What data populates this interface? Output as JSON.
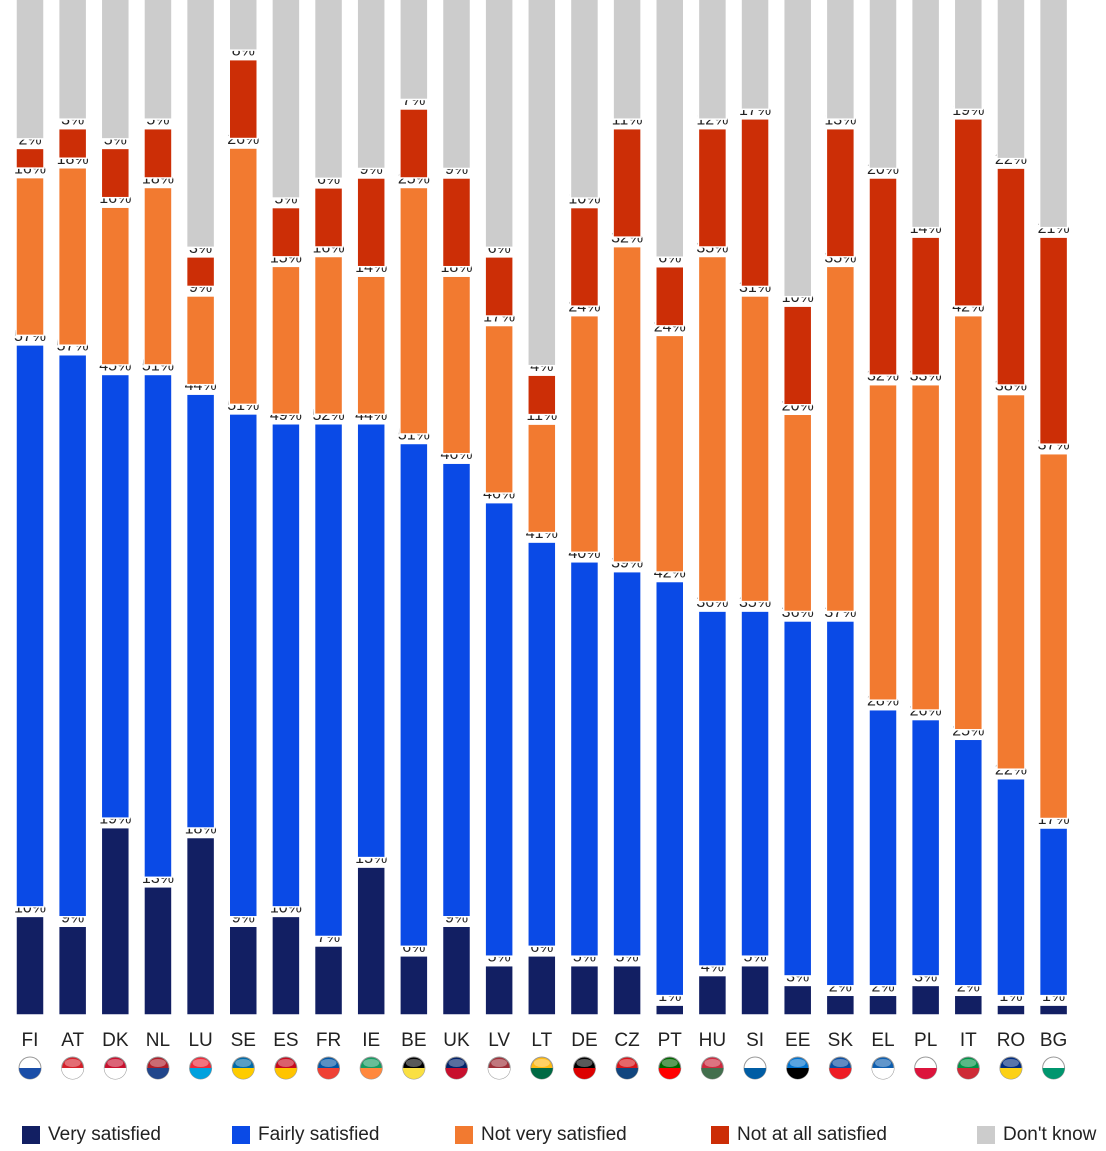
{
  "chart_data": {
    "type": "bar",
    "stacked": true,
    "unit": "%",
    "categories": [
      "FI",
      "AT",
      "DK",
      "NL",
      "LU",
      "SE",
      "ES",
      "FR",
      "IE",
      "BE",
      "UK",
      "LV",
      "LT",
      "DE",
      "CZ",
      "PT",
      "HU",
      "SI",
      "EE",
      "SK",
      "EL",
      "PL",
      "IT",
      "RO",
      "BG"
    ],
    "series": [
      {
        "name": "Very satisfied",
        "color": "#121f63",
        "values": [
          10,
          9,
          19,
          13,
          18,
          9,
          10,
          7,
          15,
          6,
          9,
          5,
          6,
          5,
          5,
          1,
          4,
          5,
          3,
          2,
          2,
          3,
          2,
          1,
          1
        ]
      },
      {
        "name": "Fairly satisfied",
        "color": "#0a4ae6",
        "values": [
          57,
          57,
          45,
          51,
          44,
          51,
          49,
          52,
          44,
          51,
          46,
          46,
          41,
          40,
          39,
          42,
          36,
          35,
          36,
          37,
          28,
          26,
          25,
          22,
          17
        ]
      },
      {
        "name": "Not very satisfied",
        "color": "#f27a30",
        "values": [
          16,
          18,
          16,
          18,
          9,
          26,
          15,
          16,
          14,
          25,
          18,
          17,
          11,
          24,
          32,
          24,
          35,
          31,
          20,
          35,
          32,
          33,
          42,
          38,
          37
        ]
      },
      {
        "name": "Not at all satisfied",
        "color": "#cc2e06",
        "values": [
          2,
          3,
          5,
          5,
          3,
          8,
          5,
          6,
          9,
          7,
          9,
          6,
          4,
          10,
          11,
          6,
          12,
          17,
          10,
          13,
          20,
          14,
          19,
          22,
          21
        ]
      },
      {
        "name": "Don't know",
        "color": "#cccccc",
        "values": [
          15,
          13,
          15,
          13,
          26,
          6,
          21,
          19,
          18,
          11,
          18,
          26,
          38,
          21,
          13,
          27,
          13,
          12,
          31,
          13,
          18,
          24,
          12,
          17,
          24
        ]
      }
    ],
    "flags": [
      "finland-flag-icon",
      "austria-flag-icon",
      "denmark-flag-icon",
      "netherlands-flag-icon",
      "luxembourg-flag-icon",
      "sweden-flag-icon",
      "spain-flag-icon",
      "france-flag-icon",
      "ireland-flag-icon",
      "belgium-flag-icon",
      "uk-flag-icon",
      "latvia-flag-icon",
      "lithuania-flag-icon",
      "germany-flag-icon",
      "czech-flag-icon",
      "portugal-flag-icon",
      "hungary-flag-icon",
      "slovenia-flag-icon",
      "estonia-flag-icon",
      "slovakia-flag-icon",
      "greece-flag-icon",
      "poland-flag-icon",
      "italy-flag-icon",
      "romania-flag-icon",
      "bulgaria-flag-icon"
    ],
    "legend_position": "bottom",
    "grid": false
  }
}
